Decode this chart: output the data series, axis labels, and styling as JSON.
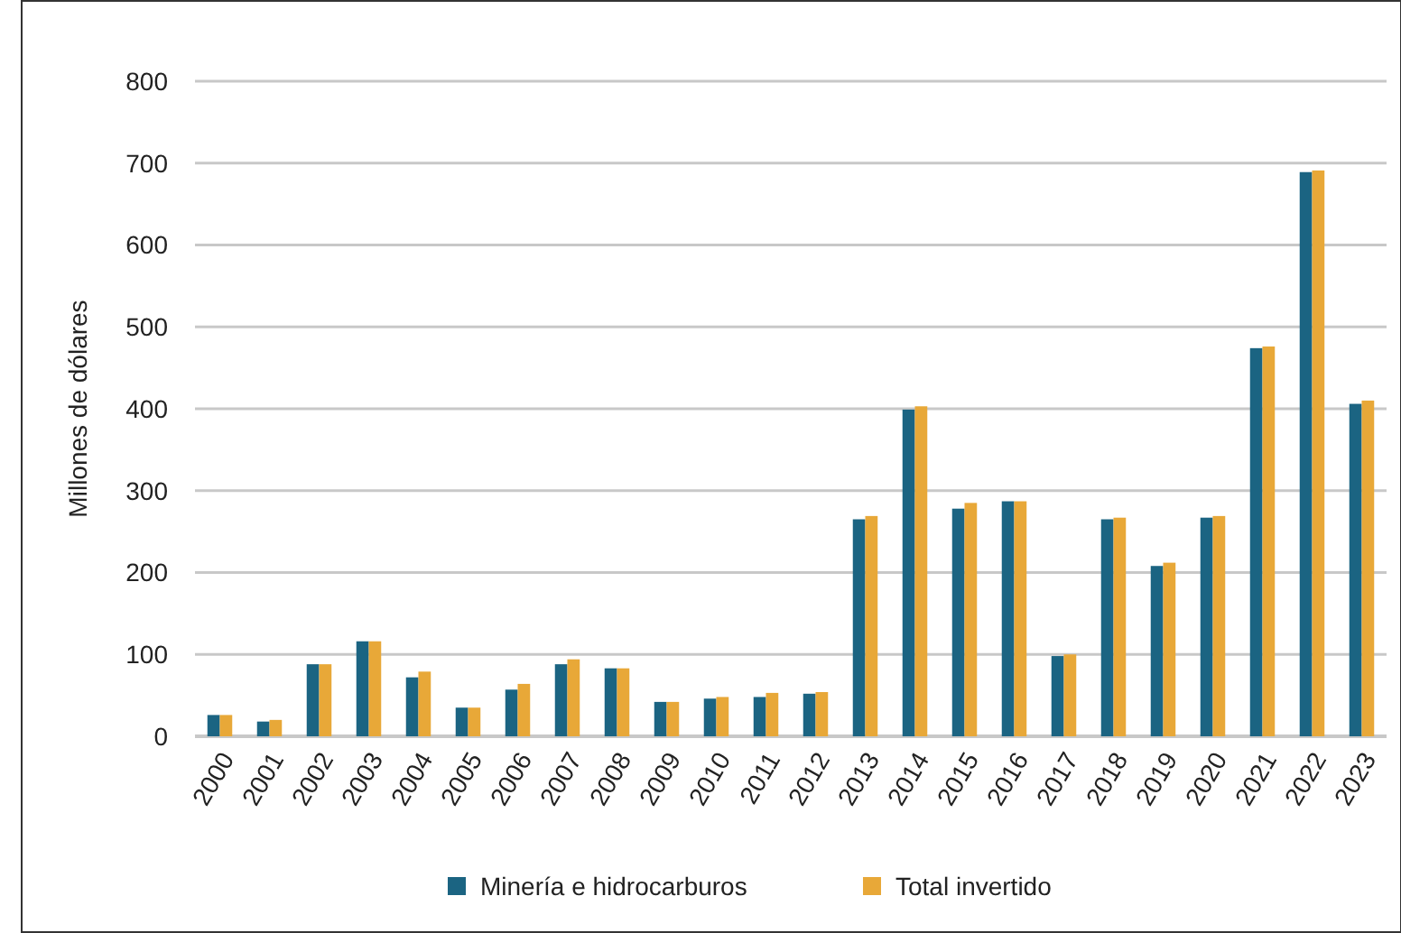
{
  "chart_data": {
    "type": "bar",
    "ylabel": "Millones de dólares",
    "categories": [
      "2000",
      "2001",
      "2002",
      "2003",
      "2004",
      "2005",
      "2006",
      "2007",
      "2008",
      "2009",
      "2010",
      "2011",
      "2012",
      "2013",
      "2014",
      "2015",
      "2016",
      "2017",
      "2018",
      "2019",
      "2020",
      "2021",
      "2022",
      "2023"
    ],
    "series": [
      {
        "name": "Minería e hidrocarburos",
        "color": "#1b6482",
        "values": [
          26,
          18,
          88,
          116,
          72,
          35,
          57,
          88,
          83,
          42,
          46,
          48,
          52,
          265,
          399,
          278,
          287,
          98,
          265,
          208,
          267,
          474,
          689,
          406
        ]
      },
      {
        "name": "Total invertido",
        "color": "#e8a838",
        "values": [
          26,
          20,
          88,
          116,
          79,
          35,
          64,
          94,
          83,
          42,
          48,
          53,
          54,
          269,
          403,
          285,
          287,
          100,
          267,
          212,
          269,
          476,
          691,
          410
        ]
      }
    ],
    "ylim": [
      0,
      800
    ],
    "yticks": [
      0,
      100,
      200,
      300,
      400,
      500,
      600,
      700,
      800
    ],
    "grid": "y",
    "legend": "bottom"
  }
}
